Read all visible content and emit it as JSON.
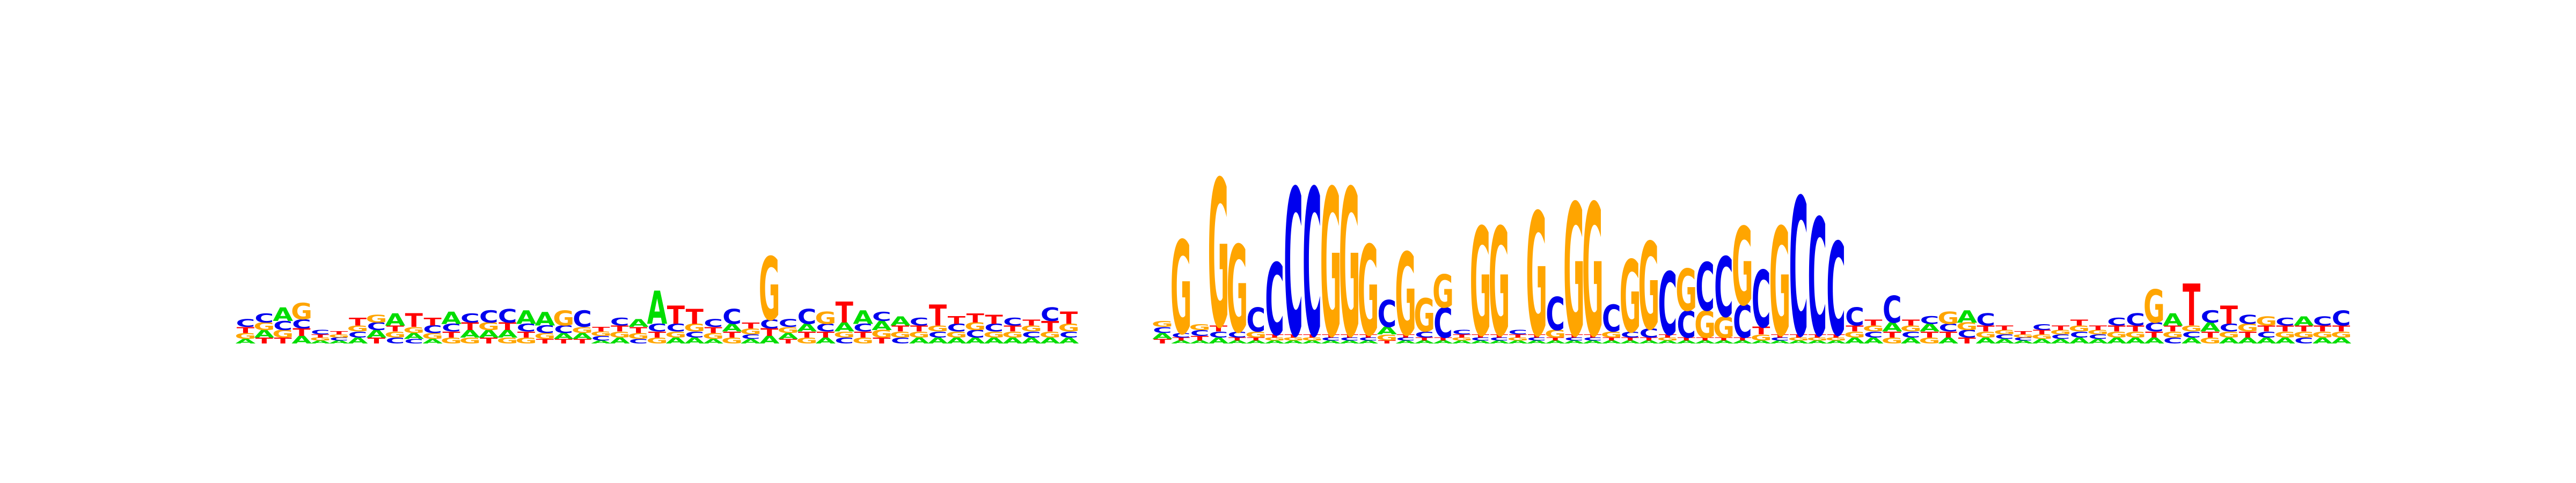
{
  "chart_data": {
    "type": "sequence-logo",
    "title": "",
    "xlabel": "",
    "ylabel": "",
    "alphabet": [
      "A",
      "C",
      "G",
      "T"
    ],
    "colors": {
      "A": "#00dd00",
      "C": "#0000ee",
      "G": "#ffa500",
      "T": "#ff0000"
    },
    "ylim_bits": [
      0,
      2
    ],
    "grid": false,
    "legend": "none",
    "positions": [
      {
        "A": 0.03,
        "C": 0.05,
        "G": 0.04,
        "T": 0.04
      },
      {
        "A": 0.05,
        "C": 0.06,
        "G": 0.05,
        "T": 0.04
      },
      {
        "A": 0.09,
        "C": 0.06,
        "G": 0.05,
        "T": 0.04
      },
      {
        "A": 0.05,
        "C": 0.06,
        "G": 0.11,
        "T": 0.05
      },
      {
        "A": 0.02,
        "C": 0.03,
        "G": 0.02,
        "T": 0.02
      },
      {
        "A": 0.02,
        "C": 0.02,
        "G": 0.02,
        "T": 0.02
      },
      {
        "A": 0.04,
        "C": 0.04,
        "G": 0.04,
        "T": 0.05
      },
      {
        "A": 0.05,
        "C": 0.05,
        "G": 0.05,
        "T": 0.04
      },
      {
        "A": 0.08,
        "C": 0.04,
        "G": 0.04,
        "T": 0.04
      },
      {
        "A": 0.04,
        "C": 0.03,
        "G": 0.04,
        "T": 0.09
      },
      {
        "A": 0.03,
        "C": 0.05,
        "G": 0.04,
        "T": 0.05
      },
      {
        "A": 0.08,
        "C": 0.05,
        "G": 0.04,
        "T": 0.04
      },
      {
        "A": 0.05,
        "C": 0.06,
        "G": 0.04,
        "T": 0.05
      },
      {
        "A": 0.05,
        "C": 0.08,
        "G": 0.05,
        "T": 0.04
      },
      {
        "A": 0.05,
        "C": 0.09,
        "G": 0.04,
        "T": 0.05
      },
      {
        "A": 0.09,
        "C": 0.05,
        "G": 0.04,
        "T": 0.04
      },
      {
        "A": 0.09,
        "C": 0.05,
        "G": 0.04,
        "T": 0.03
      },
      {
        "A": 0.04,
        "C": 0.05,
        "G": 0.1,
        "T": 0.03
      },
      {
        "A": 0.04,
        "C": 0.11,
        "G": 0.04,
        "T": 0.03
      },
      {
        "A": 0.02,
        "C": 0.03,
        "G": 0.03,
        "T": 0.03
      },
      {
        "A": 0.04,
        "C": 0.05,
        "G": 0.04,
        "T": 0.04
      },
      {
        "A": 0.05,
        "C": 0.03,
        "G": 0.04,
        "T": 0.04
      },
      {
        "A": 0.22,
        "C": 0.05,
        "G": 0.04,
        "T": 0.04
      },
      {
        "A": 0.04,
        "C": 0.05,
        "G": 0.04,
        "T": 0.12
      },
      {
        "A": 0.04,
        "C": 0.04,
        "G": 0.05,
        "T": 0.1
      },
      {
        "A": 0.03,
        "C": 0.05,
        "G": 0.04,
        "T": 0.04
      },
      {
        "A": 0.05,
        "C": 0.1,
        "G": 0.04,
        "T": 0.04
      },
      {
        "A": 0.03,
        "C": 0.03,
        "G": 0.04,
        "T": 0.04
      },
      {
        "A": 0.05,
        "C": 0.06,
        "G": 0.42,
        "T": 0.05
      },
      {
        "A": 0.04,
        "C": 0.05,
        "G": 0.04,
        "T": 0.03
      },
      {
        "A": 0.05,
        "C": 0.1,
        "G": 0.04,
        "T": 0.04
      },
      {
        "A": 0.04,
        "C": 0.05,
        "G": 0.08,
        "T": 0.04
      },
      {
        "A": 0.06,
        "C": 0.04,
        "G": 0.04,
        "T": 0.14
      },
      {
        "A": 0.09,
        "C": 0.05,
        "G": 0.04,
        "T": 0.04
      },
      {
        "A": 0.06,
        "C": 0.06,
        "G": 0.05,
        "T": 0.04
      },
      {
        "A": 0.06,
        "C": 0.04,
        "G": 0.04,
        "T": 0.04
      },
      {
        "A": 0.04,
        "C": 0.05,
        "G": 0.04,
        "T": 0.04
      },
      {
        "A": 0.04,
        "C": 0.04,
        "G": 0.04,
        "T": 0.14
      },
      {
        "A": 0.04,
        "C": 0.05,
        "G": 0.04,
        "T": 0.05
      },
      {
        "A": 0.04,
        "C": 0.05,
        "G": 0.05,
        "T": 0.06
      },
      {
        "A": 0.04,
        "C": 0.05,
        "G": 0.04,
        "T": 0.06
      },
      {
        "A": 0.04,
        "C": 0.05,
        "G": 0.04,
        "T": 0.04
      },
      {
        "A": 0.04,
        "C": 0.04,
        "G": 0.04,
        "T": 0.04
      },
      {
        "A": 0.04,
        "C": 0.09,
        "G": 0.04,
        "T": 0.07
      },
      {
        "A": 0.04,
        "C": 0.04,
        "G": 0.05,
        "T": 0.08
      },
      {
        "A": 0.0,
        "C": 0.0,
        "G": 0.0,
        "T": 0.0
      },
      {
        "A": 0.0,
        "C": 0.0,
        "G": 0.0,
        "T": 0.0
      },
      {
        "A": 0.0,
        "C": 0.0,
        "G": 0.0,
        "T": 0.0
      },
      {
        "A": 0.0,
        "C": 0.0,
        "G": 0.0,
        "T": 0.0
      },
      {
        "A": 0.04,
        "C": 0.04,
        "G": 0.04,
        "T": 0.03
      },
      {
        "A": 0.02,
        "C": 0.03,
        "G": 0.62,
        "T": 0.02
      },
      {
        "A": 0.02,
        "C": 0.04,
        "G": 0.04,
        "T": 0.03
      },
      {
        "A": 0.04,
        "C": 0.04,
        "G": 0.98,
        "T": 0.04
      },
      {
        "A": 0.02,
        "C": 0.04,
        "G": 0.58,
        "T": 0.02
      },
      {
        "A": 0.02,
        "C": 0.16,
        "G": 0.04,
        "T": 0.02
      },
      {
        "A": 0.02,
        "C": 0.48,
        "G": 0.02,
        "T": 0.02
      },
      {
        "A": 0.02,
        "C": 0.98,
        "G": 0.02,
        "T": 0.02
      },
      {
        "A": 0.02,
        "C": 0.98,
        "G": 0.02,
        "T": 0.02
      },
      {
        "A": 0.02,
        "C": 0.02,
        "G": 0.98,
        "T": 0.02
      },
      {
        "A": 0.02,
        "C": 0.02,
        "G": 0.98,
        "T": 0.02
      },
      {
        "A": 0.02,
        "C": 0.02,
        "G": 0.6,
        "T": 0.02
      },
      {
        "A": 0.05,
        "C": 0.18,
        "G": 0.04,
        "T": 0.02
      },
      {
        "A": 0.02,
        "C": 0.02,
        "G": 0.55,
        "T": 0.02
      },
      {
        "A": 0.02,
        "C": 0.04,
        "G": 0.22,
        "T": 0.02
      },
      {
        "A": 0.02,
        "C": 0.2,
        "G": 0.22,
        "T": 0.02
      },
      {
        "A": 0.02,
        "C": 0.03,
        "G": 0.02,
        "T": 0.02
      },
      {
        "A": 0.02,
        "C": 0.02,
        "G": 0.72,
        "T": 0.02
      },
      {
        "A": 0.02,
        "C": 0.02,
        "G": 0.72,
        "T": 0.02
      },
      {
        "A": 0.02,
        "C": 0.03,
        "G": 0.02,
        "T": 0.02
      },
      {
        "A": 0.02,
        "C": 0.02,
        "G": 0.82,
        "T": 0.02
      },
      {
        "A": 0.02,
        "C": 0.22,
        "G": 0.05,
        "T": 0.02
      },
      {
        "A": 0.02,
        "C": 0.02,
        "G": 0.88,
        "T": 0.02
      },
      {
        "A": 0.02,
        "C": 0.02,
        "G": 0.88,
        "T": 0.02
      },
      {
        "A": 0.02,
        "C": 0.18,
        "G": 0.04,
        "T": 0.02
      },
      {
        "A": 0.02,
        "C": 0.04,
        "G": 0.48,
        "T": 0.02
      },
      {
        "A": 0.02,
        "C": 0.06,
        "G": 0.58,
        "T": 0.02
      },
      {
        "A": 0.02,
        "C": 0.42,
        "G": 0.02,
        "T": 0.02
      },
      {
        "A": 0.02,
        "C": 0.18,
        "G": 0.28,
        "T": 0.02
      },
      {
        "A": 0.02,
        "C": 0.32,
        "G": 0.18,
        "T": 0.02
      },
      {
        "A": 0.02,
        "C": 0.4,
        "G": 0.14,
        "T": 0.02
      },
      {
        "A": 0.02,
        "C": 0.22,
        "G": 0.52,
        "T": 0.02
      },
      {
        "A": 0.02,
        "C": 0.38,
        "G": 0.04,
        "T": 0.05
      },
      {
        "A": 0.02,
        "C": 0.02,
        "G": 0.72,
        "T": 0.02
      },
      {
        "A": 0.02,
        "C": 0.92,
        "G": 0.02,
        "T": 0.02
      },
      {
        "A": 0.02,
        "C": 0.78,
        "G": 0.02,
        "T": 0.02
      },
      {
        "A": 0.02,
        "C": 0.62,
        "G": 0.02,
        "T": 0.02
      },
      {
        "A": 0.04,
        "C": 0.12,
        "G": 0.04,
        "T": 0.04
      },
      {
        "A": 0.04,
        "C": 0.04,
        "G": 0.04,
        "T": 0.04
      },
      {
        "A": 0.06,
        "C": 0.18,
        "G": 0.04,
        "T": 0.04
      },
      {
        "A": 0.04,
        "C": 0.04,
        "G": 0.04,
        "T": 0.04
      },
      {
        "A": 0.05,
        "C": 0.05,
        "G": 0.04,
        "T": 0.04
      },
      {
        "A": 0.04,
        "C": 0.05,
        "G": 0.08,
        "T": 0.04
      },
      {
        "A": 0.08,
        "C": 0.05,
        "G": 0.05,
        "T": 0.04
      },
      {
        "A": 0.04,
        "C": 0.08,
        "G": 0.04,
        "T": 0.04
      },
      {
        "A": 0.03,
        "C": 0.03,
        "G": 0.03,
        "T": 0.03
      },
      {
        "A": 0.02,
        "C": 0.02,
        "G": 0.02,
        "T": 0.02
      },
      {
        "A": 0.03,
        "C": 0.04,
        "G": 0.03,
        "T": 0.03
      },
      {
        "A": 0.03,
        "C": 0.03,
        "G": 0.03,
        "T": 0.03
      },
      {
        "A": 0.04,
        "C": 0.04,
        "G": 0.04,
        "T": 0.04
      },
      {
        "A": 0.03,
        "C": 0.03,
        "G": 0.03,
        "T": 0.03
      },
      {
        "A": 0.04,
        "C": 0.05,
        "G": 0.04,
        "T": 0.04
      },
      {
        "A": 0.04,
        "C": 0.08,
        "G": 0.04,
        "T": 0.04
      },
      {
        "A": 0.04,
        "C": 0.06,
        "G": 0.22,
        "T": 0.04
      },
      {
        "A": 0.08,
        "C": 0.04,
        "G": 0.04,
        "T": 0.04
      },
      {
        "A": 0.04,
        "C": 0.04,
        "G": 0.04,
        "T": 0.28
      },
      {
        "A": 0.06,
        "C": 0.08,
        "G": 0.04,
        "T": 0.04
      },
      {
        "A": 0.04,
        "C": 0.05,
        "G": 0.04,
        "T": 0.12
      },
      {
        "A": 0.04,
        "C": 0.06,
        "G": 0.05,
        "T": 0.04
      },
      {
        "A": 0.04,
        "C": 0.04,
        "G": 0.06,
        "T": 0.04
      },
      {
        "A": 0.04,
        "C": 0.05,
        "G": 0.04,
        "T": 0.04
      },
      {
        "A": 0.06,
        "C": 0.04,
        "G": 0.04,
        "T": 0.04
      },
      {
        "A": 0.04,
        "C": 0.06,
        "G": 0.04,
        "T": 0.04
      },
      {
        "A": 0.04,
        "C": 0.1,
        "G": 0.04,
        "T": 0.04
      }
    ]
  }
}
